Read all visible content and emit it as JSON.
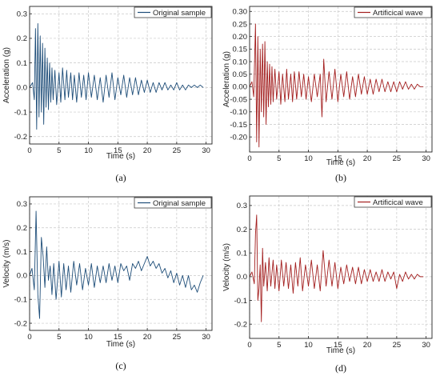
{
  "chart_data": [
    {
      "type": "line",
      "panel_label": "(a)",
      "xlabel": "Time (s)",
      "ylabel": "Acceleration (g)",
      "xlim": [
        0,
        31
      ],
      "ylim": [
        -0.23,
        0.33
      ],
      "x_ticks": [
        0,
        5,
        10,
        15,
        20,
        25,
        30
      ],
      "y_ticks": [
        -0.2,
        -0.1,
        0.0,
        0.1,
        0.2,
        0.3
      ],
      "y_tick_labels": [
        "-0.2",
        "-0.1",
        "0.0",
        "0.1",
        "0.2",
        "0.3"
      ],
      "grid": true,
      "legend_position": "top-right",
      "series": [
        {
          "name": "Original sample",
          "color": "#1f4e79",
          "x": [
            0,
            0.5,
            0.8,
            1.0,
            1.2,
            1.4,
            1.6,
            1.8,
            2.0,
            2.2,
            2.4,
            2.6,
            2.8,
            3.0,
            3.2,
            3.4,
            3.6,
            3.8,
            4.0,
            4.3,
            4.6,
            5.0,
            5.3,
            5.6,
            6.0,
            6.3,
            6.6,
            7.0,
            7.3,
            7.6,
            8.0,
            8.4,
            8.8,
            9.2,
            9.6,
            10.0,
            10.5,
            11.0,
            11.5,
            12.0,
            12.5,
            13.0,
            13.5,
            14.0,
            14.5,
            15.0,
            15.5,
            16.0,
            16.5,
            17.0,
            17.5,
            18.0,
            18.5,
            19.0,
            19.5,
            20.0,
            20.5,
            21.0,
            21.5,
            22.0,
            22.5,
            23.0,
            23.5,
            24.0,
            24.5,
            25.0,
            25.5,
            26.0,
            26.5,
            27.0,
            27.5,
            28.0,
            28.5,
            29.0,
            29.5
          ],
          "y": [
            0,
            0.02,
            -0.05,
            0.24,
            -0.17,
            0.26,
            -0.12,
            0.21,
            -0.1,
            0.18,
            -0.15,
            0.16,
            -0.08,
            0.12,
            -0.09,
            0.1,
            -0.06,
            0.08,
            -0.05,
            0.07,
            -0.07,
            0.06,
            -0.06,
            0.08,
            -0.05,
            0.07,
            -0.04,
            0.06,
            -0.05,
            0.05,
            -0.06,
            0.06,
            -0.04,
            0.05,
            -0.05,
            0.06,
            -0.04,
            0.05,
            -0.05,
            0.04,
            -0.06,
            0.05,
            -0.04,
            0.06,
            -0.05,
            0.04,
            -0.03,
            0.05,
            -0.04,
            0.04,
            -0.03,
            0.04,
            -0.03,
            0.03,
            -0.02,
            0.03,
            -0.02,
            0.02,
            -0.02,
            0.02,
            -0.01,
            0.02,
            -0.01,
            0.01,
            -0.01,
            0.02,
            -0.01,
            0.01,
            -0.01,
            0.01,
            0.0,
            0.01,
            0.0,
            0.01,
            0.0
          ]
        }
      ]
    },
    {
      "type": "line",
      "panel_label": "(b)",
      "xlabel": "Time (s)",
      "ylabel": "Acceleration (g)",
      "xlim": [
        0,
        31
      ],
      "ylim": [
        -0.26,
        0.32
      ],
      "x_ticks": [
        0,
        5,
        10,
        15,
        20,
        25,
        30
      ],
      "y_ticks": [
        -0.2,
        -0.15,
        -0.1,
        -0.05,
        0.0,
        0.05,
        0.1,
        0.15,
        0.2,
        0.25,
        0.3
      ],
      "y_tick_labels": [
        "-0.20",
        "-0.15",
        "-0.10",
        "-0.05",
        "0.00",
        "0.05",
        "0.10",
        "0.15",
        "0.20",
        "0.25",
        "0.30"
      ],
      "grid": true,
      "legend_position": "top-right",
      "series": [
        {
          "name": "Artificical wave",
          "color": "#a31f1f",
          "x": [
            0,
            0.4,
            0.7,
            1.0,
            1.2,
            1.4,
            1.6,
            1.8,
            2.0,
            2.2,
            2.4,
            2.6,
            2.8,
            3.0,
            3.2,
            3.4,
            3.6,
            3.8,
            4.0,
            4.3,
            4.6,
            5.0,
            5.3,
            5.6,
            6.0,
            6.3,
            6.6,
            7.0,
            7.3,
            7.6,
            8.0,
            8.4,
            8.8,
            9.2,
            9.6,
            10.0,
            10.5,
            11.0,
            11.5,
            12.0,
            12.3,
            12.6,
            13.0,
            13.5,
            14.0,
            14.5,
            15.0,
            15.5,
            16.0,
            16.5,
            17.0,
            17.5,
            18.0,
            18.5,
            19.0,
            19.5,
            20.0,
            20.5,
            21.0,
            21.5,
            22.0,
            22.5,
            23.0,
            23.5,
            24.0,
            24.5,
            25.0,
            25.5,
            26.0,
            26.5,
            27.0,
            27.5,
            28.0,
            28.5,
            29.0,
            29.5
          ],
          "y": [
            0,
            0.02,
            -0.04,
            0.25,
            -0.22,
            0.2,
            -0.24,
            0.15,
            -0.1,
            0.17,
            -0.12,
            0.18,
            -0.15,
            0.1,
            -0.08,
            0.09,
            -0.07,
            0.08,
            -0.06,
            0.07,
            -0.05,
            0.06,
            -0.07,
            0.05,
            -0.06,
            0.07,
            -0.05,
            0.05,
            -0.06,
            0.06,
            -0.05,
            0.06,
            -0.04,
            0.05,
            -0.05,
            0.04,
            -0.06,
            0.05,
            -0.04,
            0.05,
            -0.12,
            0.11,
            -0.06,
            0.06,
            -0.05,
            0.07,
            -0.06,
            0.05,
            -0.04,
            0.06,
            -0.05,
            0.04,
            -0.04,
            0.05,
            -0.03,
            0.04,
            -0.03,
            0.03,
            -0.03,
            0.03,
            -0.02,
            0.03,
            -0.02,
            0.02,
            -0.02,
            0.02,
            -0.02,
            0.02,
            -0.01,
            0.02,
            -0.01,
            0.01,
            -0.01,
            0.01,
            0.0,
            0.0
          ]
        }
      ]
    },
    {
      "type": "line",
      "panel_label": "(c)",
      "xlabel": "Time (s)",
      "ylabel": "Velocity (m/s)",
      "xlim": [
        0,
        31
      ],
      "ylim": [
        -0.23,
        0.33
      ],
      "x_ticks": [
        0,
        5,
        10,
        15,
        20,
        25,
        30
      ],
      "y_ticks": [
        -0.2,
        -0.1,
        0.0,
        0.1,
        0.2,
        0.3
      ],
      "y_tick_labels": [
        "-0.2",
        "-0.1",
        "0.0",
        "0.1",
        "0.2",
        "0.3"
      ],
      "grid": true,
      "legend_position": "top-right",
      "series": [
        {
          "name": "Original sample",
          "color": "#1f4e79",
          "x": [
            0,
            0.4,
            0.8,
            1.1,
            1.4,
            1.7,
            2.0,
            2.3,
            2.6,
            2.9,
            3.2,
            3.5,
            3.8,
            4.1,
            4.5,
            5.0,
            5.4,
            5.8,
            6.2,
            6.6,
            7.0,
            7.5,
            8.0,
            8.5,
            9.0,
            9.5,
            10.0,
            10.5,
            11.0,
            11.5,
            12.0,
            12.5,
            13.0,
            13.5,
            14.0,
            14.5,
            15.0,
            15.5,
            16.0,
            16.5,
            17.0,
            17.5,
            18.0,
            18.5,
            19.0,
            19.5,
            20.0,
            20.5,
            21.0,
            21.5,
            22.0,
            22.5,
            23.0,
            23.5,
            24.0,
            24.5,
            25.0,
            25.5,
            26.0,
            26.5,
            27.0,
            27.5,
            28.0,
            28.5,
            29.0,
            29.5
          ],
          "y": [
            0,
            0.03,
            -0.06,
            0.27,
            -0.08,
            -0.18,
            0.16,
            0.08,
            -0.05,
            0.12,
            -0.02,
            0.04,
            -0.08,
            0.05,
            -0.1,
            0.06,
            -0.09,
            0.05,
            -0.06,
            0.04,
            -0.07,
            0.06,
            -0.04,
            0.05,
            -0.06,
            0.03,
            -0.04,
            0.05,
            -0.05,
            0.04,
            -0.03,
            0.04,
            -0.03,
            0.05,
            -0.02,
            0.04,
            -0.03,
            0.05,
            0.02,
            0.04,
            -0.02,
            0.05,
            0.03,
            0.06,
            0.02,
            0.05,
            0.08,
            0.04,
            0.06,
            0.03,
            0.05,
            0.01,
            0.03,
            -0.01,
            0.02,
            -0.03,
            0.01,
            -0.04,
            0.0,
            -0.05,
            0.0,
            -0.06,
            -0.04,
            -0.07,
            -0.03,
            0.0
          ]
        }
      ]
    },
    {
      "type": "line",
      "panel_label": "(d)",
      "xlabel": "Time (s)",
      "ylabel": "Velocity (m/s)",
      "xlim": [
        0,
        31
      ],
      "ylim": [
        -0.26,
        0.34
      ],
      "x_ticks": [
        0,
        5,
        10,
        15,
        20,
        25,
        30
      ],
      "y_ticks": [
        -0.2,
        -0.1,
        0.0,
        0.1,
        0.2,
        0.3
      ],
      "y_tick_labels": [
        "-0.2",
        "-0.1",
        "0.0",
        "0.1",
        "0.2",
        "0.3"
      ],
      "grid": true,
      "legend_position": "top-right",
      "series": [
        {
          "name": "Artificical wave",
          "color": "#a31f1f",
          "x": [
            0,
            0.4,
            0.8,
            1.0,
            1.2,
            1.4,
            1.6,
            1.8,
            2.0,
            2.2,
            2.4,
            2.7,
            3.0,
            3.3,
            3.6,
            4.0,
            4.3,
            4.6,
            5.0,
            5.4,
            5.8,
            6.2,
            6.6,
            7.0,
            7.4,
            7.8,
            8.2,
            8.6,
            9.0,
            9.5,
            10.0,
            10.5,
            11.0,
            11.5,
            12.0,
            12.5,
            13.0,
            13.5,
            14.0,
            14.5,
            15.0,
            15.5,
            16.0,
            16.5,
            17.0,
            17.5,
            18.0,
            18.5,
            19.0,
            19.5,
            20.0,
            20.5,
            21.0,
            21.5,
            22.0,
            22.5,
            23.0,
            23.5,
            24.0,
            24.5,
            25.0,
            25.5,
            26.0,
            26.5,
            27.0,
            27.5,
            28.0,
            28.5,
            29.0,
            29.5
          ],
          "y": [
            0,
            0.02,
            -0.03,
            0.18,
            0.26,
            -0.1,
            -0.05,
            0.05,
            -0.19,
            0.12,
            -0.04,
            0.06,
            -0.06,
            0.08,
            -0.04,
            0.07,
            -0.05,
            0.05,
            -0.06,
            0.07,
            -0.04,
            0.06,
            -0.05,
            0.05,
            -0.07,
            0.06,
            -0.04,
            0.08,
            -0.06,
            0.05,
            -0.04,
            0.07,
            -0.05,
            0.05,
            -0.06,
            0.11,
            -0.04,
            0.07,
            -0.04,
            0.06,
            -0.05,
            0.04,
            -0.03,
            0.05,
            -0.02,
            0.04,
            -0.03,
            0.04,
            -0.03,
            0.03,
            -0.02,
            0.03,
            -0.02,
            0.02,
            -0.02,
            0.03,
            -0.02,
            0.02,
            -0.01,
            0.02,
            -0.05,
            0.01,
            -0.02,
            0.02,
            -0.01,
            0.01,
            -0.01,
            0.01,
            0.0,
            0.0
          ]
        }
      ]
    }
  ]
}
